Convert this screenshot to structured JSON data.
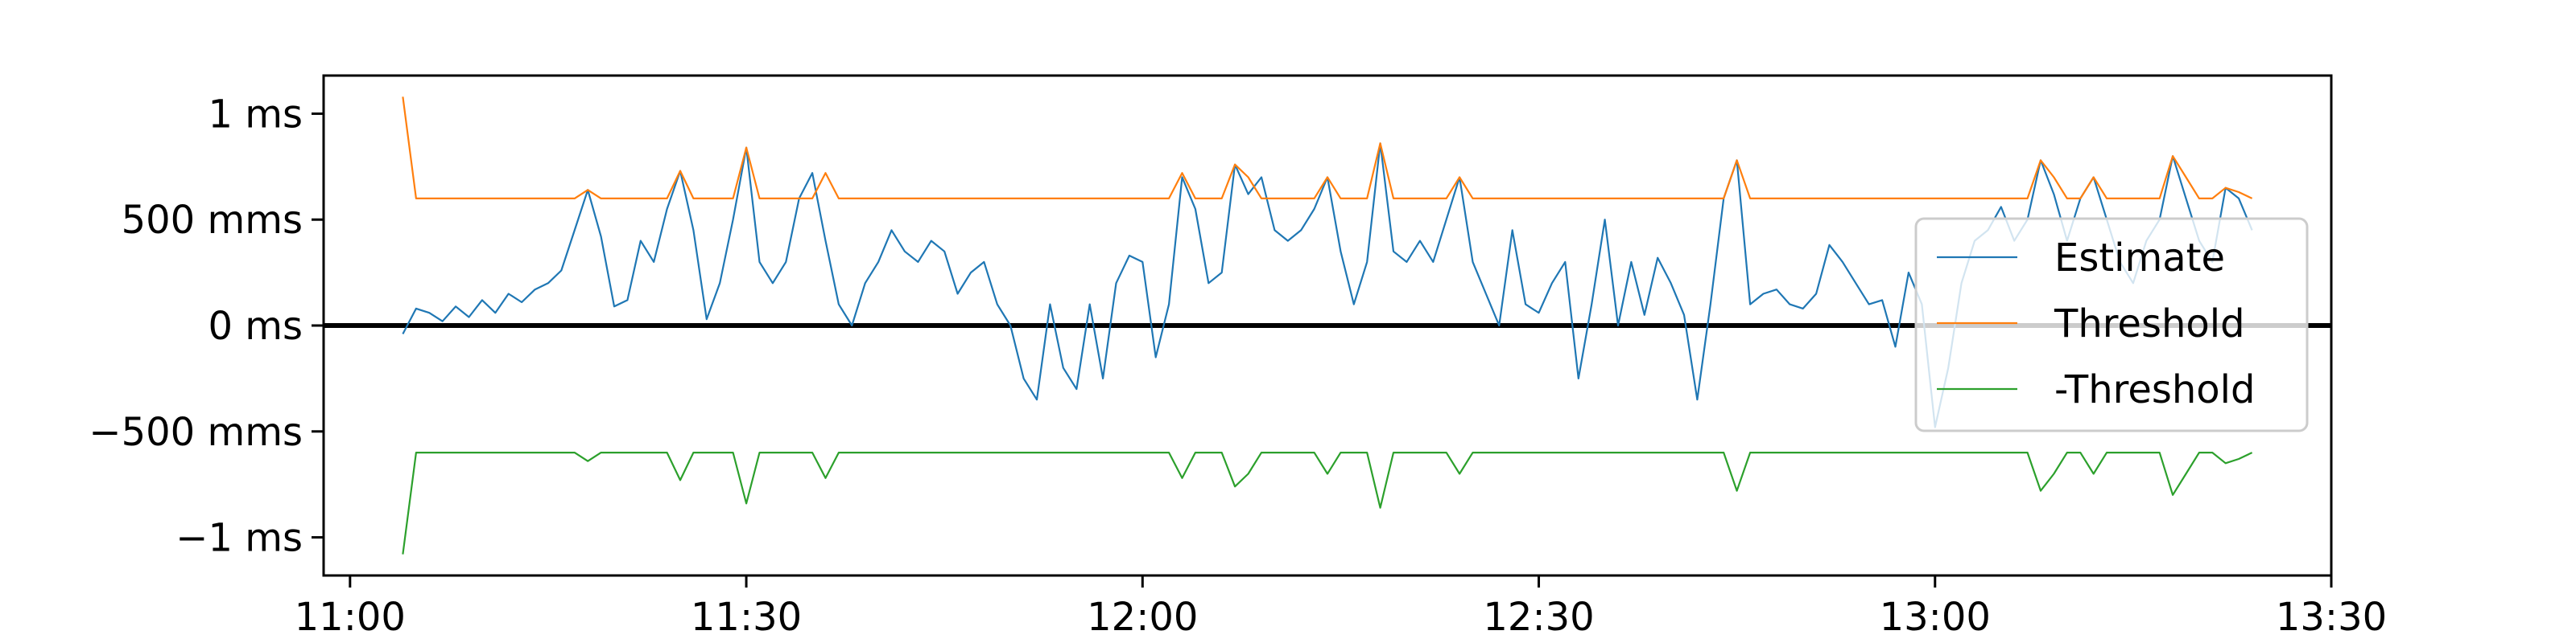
{
  "chart_data": {
    "type": "line",
    "title": "",
    "xlabel": "",
    "ylabel": "",
    "xlim": [
      "10:58",
      "13:30"
    ],
    "ylim": [
      -1180,
      1180
    ],
    "x_ticks": [
      {
        "value": "11:00",
        "label": "11:00"
      },
      {
        "value": "11:30",
        "label": "11:30"
      },
      {
        "value": "12:00",
        "label": "12:00"
      },
      {
        "value": "12:30",
        "label": "12:30"
      },
      {
        "value": "13:00",
        "label": "13:00"
      },
      {
        "value": "13:30",
        "label": "13:30"
      }
    ],
    "y_ticks": [
      {
        "value": 1000,
        "label": "1 ms"
      },
      {
        "value": 500,
        "label": "500 mms"
      },
      {
        "value": 0,
        "label": "0 ms"
      },
      {
        "value": -500,
        "label": "−500 mms"
      },
      {
        "value": -1000,
        "label": "−1 ms"
      }
    ],
    "reference_line": {
      "y": 0,
      "color": "#000000"
    },
    "grid": false,
    "legend": {
      "placement": "right"
    },
    "series": [
      {
        "name": "Estimate",
        "color": "#1f77b4",
        "points": [
          [
            "11:04",
            -40
          ],
          [
            "11:05",
            80
          ],
          [
            "11:06",
            60
          ],
          [
            "11:07",
            20
          ],
          [
            "11:08",
            90
          ],
          [
            "11:09",
            40
          ],
          [
            "11:10",
            120
          ],
          [
            "11:11",
            60
          ],
          [
            "11:12",
            150
          ],
          [
            "11:13",
            110
          ],
          [
            "11:14",
            170
          ],
          [
            "11:15",
            200
          ],
          [
            "11:16",
            260
          ],
          [
            "11:17",
            450
          ],
          [
            "11:18",
            640
          ],
          [
            "11:19",
            420
          ],
          [
            "11:20",
            90
          ],
          [
            "11:21",
            120
          ],
          [
            "11:22",
            400
          ],
          [
            "11:23",
            300
          ],
          [
            "11:24",
            550
          ],
          [
            "11:25",
            730
          ],
          [
            "11:26",
            450
          ],
          [
            "11:27",
            30
          ],
          [
            "11:28",
            200
          ],
          [
            "11:29",
            500
          ],
          [
            "11:30",
            840
          ],
          [
            "11:31",
            300
          ],
          [
            "11:32",
            200
          ],
          [
            "11:33",
            300
          ],
          [
            "11:34",
            600
          ],
          [
            "11:35",
            720
          ],
          [
            "11:36",
            400
          ],
          [
            "11:37",
            100
          ],
          [
            "11:38",
            0
          ],
          [
            "11:39",
            200
          ],
          [
            "11:40",
            300
          ],
          [
            "11:41",
            450
          ],
          [
            "11:42",
            350
          ],
          [
            "11:43",
            300
          ],
          [
            "11:44",
            400
          ],
          [
            "11:45",
            350
          ],
          [
            "11:46",
            150
          ],
          [
            "11:47",
            250
          ],
          [
            "11:48",
            300
          ],
          [
            "11:49",
            100
          ],
          [
            "11:50",
            0
          ],
          [
            "11:51",
            -250
          ],
          [
            "11:52",
            -350
          ],
          [
            "11:53",
            100
          ],
          [
            "11:54",
            -200
          ],
          [
            "11:55",
            -300
          ],
          [
            "11:56",
            100
          ],
          [
            "11:57",
            -250
          ],
          [
            "11:58",
            200
          ],
          [
            "11:59",
            330
          ],
          [
            "12:00",
            300
          ],
          [
            "12:01",
            -150
          ],
          [
            "12:02",
            100
          ],
          [
            "12:03",
            700
          ],
          [
            "12:04",
            550
          ],
          [
            "12:05",
            200
          ],
          [
            "12:06",
            250
          ],
          [
            "12:07",
            760
          ],
          [
            "12:08",
            620
          ],
          [
            "12:09",
            700
          ],
          [
            "12:10",
            450
          ],
          [
            "12:11",
            400
          ],
          [
            "12:12",
            450
          ],
          [
            "12:13",
            550
          ],
          [
            "12:14",
            700
          ],
          [
            "12:15",
            350
          ],
          [
            "12:16",
            100
          ],
          [
            "12:17",
            300
          ],
          [
            "12:18",
            860
          ],
          [
            "12:19",
            350
          ],
          [
            "12:20",
            300
          ],
          [
            "12:21",
            400
          ],
          [
            "12:22",
            300
          ],
          [
            "12:23",
            500
          ],
          [
            "12:24",
            700
          ],
          [
            "12:25",
            300
          ],
          [
            "12:26",
            150
          ],
          [
            "12:27",
            0
          ],
          [
            "12:28",
            450
          ],
          [
            "12:29",
            100
          ],
          [
            "12:30",
            60
          ],
          [
            "12:31",
            200
          ],
          [
            "12:32",
            300
          ],
          [
            "12:33",
            -250
          ],
          [
            "12:34",
            100
          ],
          [
            "12:35",
            500
          ],
          [
            "12:36",
            0
          ],
          [
            "12:37",
            300
          ],
          [
            "12:38",
            50
          ],
          [
            "12:39",
            320
          ],
          [
            "12:40",
            200
          ],
          [
            "12:41",
            50
          ],
          [
            "12:42",
            -350
          ],
          [
            "12:43",
            100
          ],
          [
            "12:44",
            600
          ],
          [
            "12:45",
            780
          ],
          [
            "12:46",
            100
          ],
          [
            "12:47",
            150
          ],
          [
            "12:48",
            170
          ],
          [
            "12:49",
            100
          ],
          [
            "12:50",
            80
          ],
          [
            "12:51",
            150
          ],
          [
            "12:52",
            380
          ],
          [
            "12:53",
            300
          ],
          [
            "12:54",
            200
          ],
          [
            "12:55",
            100
          ],
          [
            "12:56",
            120
          ],
          [
            "12:57",
            -100
          ],
          [
            "12:58",
            250
          ],
          [
            "12:59",
            100
          ],
          [
            "13:00",
            -480
          ],
          [
            "13:01",
            -200
          ],
          [
            "13:02",
            200
          ],
          [
            "13:03",
            400
          ],
          [
            "13:04",
            450
          ],
          [
            "13:05",
            560
          ],
          [
            "13:06",
            400
          ],
          [
            "13:07",
            500
          ],
          [
            "13:08",
            780
          ],
          [
            "13:09",
            620
          ],
          [
            "13:10",
            400
          ],
          [
            "13:11",
            600
          ],
          [
            "13:12",
            700
          ],
          [
            "13:13",
            500
          ],
          [
            "13:14",
            300
          ],
          [
            "13:15",
            200
          ],
          [
            "13:16",
            400
          ],
          [
            "13:17",
            500
          ],
          [
            "13:18",
            800
          ],
          [
            "13:19",
            600
          ],
          [
            "13:20",
            400
          ],
          [
            "13:21",
            300
          ],
          [
            "13:22",
            650
          ],
          [
            "13:23",
            600
          ],
          [
            "13:24",
            450
          ]
        ]
      },
      {
        "name": "Threshold",
        "color": "#ff7f0e",
        "points": [
          [
            "11:04",
            1080
          ],
          [
            "11:05",
            600
          ],
          [
            "11:17",
            600
          ],
          [
            "11:18",
            640
          ],
          [
            "11:19",
            600
          ],
          [
            "11:24",
            600
          ],
          [
            "11:25",
            730
          ],
          [
            "11:26",
            600
          ],
          [
            "11:29",
            600
          ],
          [
            "11:30",
            840
          ],
          [
            "11:31",
            600
          ],
          [
            "11:35",
            600
          ],
          [
            "11:36",
            720
          ],
          [
            "11:37",
            600
          ],
          [
            "12:02",
            600
          ],
          [
            "12:03",
            720
          ],
          [
            "12:04",
            600
          ],
          [
            "12:06",
            600
          ],
          [
            "12:07",
            760
          ],
          [
            "12:08",
            700
          ],
          [
            "12:09",
            600
          ],
          [
            "12:13",
            600
          ],
          [
            "12:14",
            700
          ],
          [
            "12:15",
            600
          ],
          [
            "12:17",
            600
          ],
          [
            "12:18",
            860
          ],
          [
            "12:19",
            600
          ],
          [
            "12:23",
            600
          ],
          [
            "12:24",
            700
          ],
          [
            "12:25",
            600
          ],
          [
            "12:44",
            600
          ],
          [
            "12:45",
            780
          ],
          [
            "12:46",
            600
          ],
          [
            "13:07",
            600
          ],
          [
            "13:08",
            780
          ],
          [
            "13:09",
            700
          ],
          [
            "13:10",
            600
          ],
          [
            "13:11",
            600
          ],
          [
            "13:12",
            700
          ],
          [
            "13:13",
            600
          ],
          [
            "13:17",
            600
          ],
          [
            "13:18",
            800
          ],
          [
            "13:19",
            700
          ],
          [
            "13:20",
            600
          ],
          [
            "13:21",
            600
          ],
          [
            "13:22",
            650
          ],
          [
            "13:23",
            630
          ],
          [
            "13:24",
            600
          ]
        ]
      },
      {
        "name": "-Threshold",
        "color": "#2ca02c",
        "points": [
          [
            "11:04",
            -1080
          ],
          [
            "11:05",
            -600
          ],
          [
            "11:17",
            -600
          ],
          [
            "11:18",
            -640
          ],
          [
            "11:19",
            -600
          ],
          [
            "11:24",
            -600
          ],
          [
            "11:25",
            -730
          ],
          [
            "11:26",
            -600
          ],
          [
            "11:29",
            -600
          ],
          [
            "11:30",
            -840
          ],
          [
            "11:31",
            -600
          ],
          [
            "11:35",
            -600
          ],
          [
            "11:36",
            -720
          ],
          [
            "11:37",
            -600
          ],
          [
            "12:02",
            -600
          ],
          [
            "12:03",
            -720
          ],
          [
            "12:04",
            -600
          ],
          [
            "12:06",
            -600
          ],
          [
            "12:07",
            -760
          ],
          [
            "12:08",
            -700
          ],
          [
            "12:09",
            -600
          ],
          [
            "12:13",
            -600
          ],
          [
            "12:14",
            -700
          ],
          [
            "12:15",
            -600
          ],
          [
            "12:17",
            -600
          ],
          [
            "12:18",
            -860
          ],
          [
            "12:19",
            -600
          ],
          [
            "12:23",
            -600
          ],
          [
            "12:24",
            -700
          ],
          [
            "12:25",
            -600
          ],
          [
            "12:44",
            -600
          ],
          [
            "12:45",
            -780
          ],
          [
            "12:46",
            -600
          ],
          [
            "13:07",
            -600
          ],
          [
            "13:08",
            -780
          ],
          [
            "13:09",
            -700
          ],
          [
            "13:10",
            -600
          ],
          [
            "13:11",
            -600
          ],
          [
            "13:12",
            -700
          ],
          [
            "13:13",
            -600
          ],
          [
            "13:17",
            -600
          ],
          [
            "13:18",
            -800
          ],
          [
            "13:19",
            -700
          ],
          [
            "13:20",
            -600
          ],
          [
            "13:21",
            -600
          ],
          [
            "13:22",
            -650
          ],
          [
            "13:23",
            -630
          ],
          [
            "13:24",
            -600
          ]
        ]
      }
    ]
  }
}
